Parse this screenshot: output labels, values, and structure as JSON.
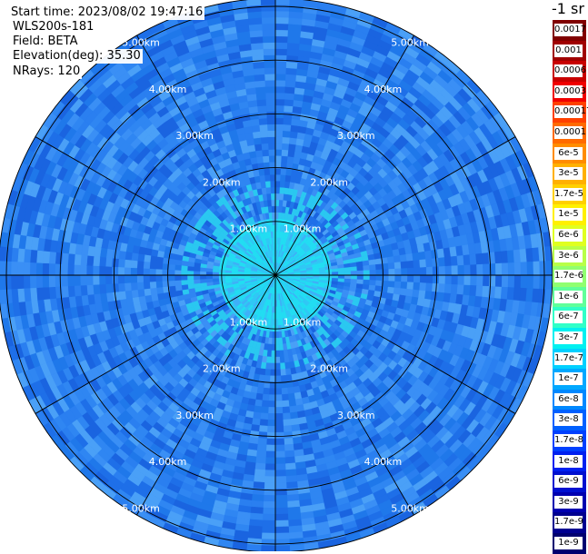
{
  "info": {
    "start_time": "Start time: 2023/08/02 19:47:16",
    "instrument": "WLS200s-181",
    "field": "Field: BETA",
    "elevation": "Elevation(deg): 35.30",
    "nrays": "NRays: 120"
  },
  "colorbar": {
    "unit_label": "-1 sr",
    "labels": [
      "0.0017",
      "0.001",
      "0.0006",
      "0.0003",
      "0.00017",
      "0.0001",
      "6e-5",
      "3e-5",
      "1.7e-5",
      "1e-5",
      "6e-6",
      "3e-6",
      "1.7e-6",
      "1e-6",
      "6e-7",
      "3e-7",
      "1.7e-7",
      "1e-7",
      "6e-8",
      "3e-8",
      "1.7e-8",
      "1e-8",
      "6e-9",
      "3e-9",
      "1.7e-9",
      "1e-9"
    ],
    "colors": [
      "#800000",
      "#a00000",
      "#c80000",
      "#f00000",
      "#ff4000",
      "#ff6a00",
      "#ff8c00",
      "#ffb000",
      "#ffd000",
      "#fff000",
      "#e0ff20",
      "#b8ff48",
      "#90ff70",
      "#60ff9a",
      "#30ffc8",
      "#00f0f0",
      "#00d0ff",
      "#00a8ff",
      "#0088ff",
      "#0060ff",
      "#0040ff",
      "#0020f0",
      "#0010d0",
      "#0000b0",
      "#000090",
      "#000070"
    ]
  },
  "chart_data": {
    "type": "ppi",
    "range_rings_km": [
      1,
      2,
      3,
      4,
      5
    ],
    "ring_labels": [
      "1.00km",
      "2.00km",
      "3.00km",
      "4.00km",
      "5.00km"
    ],
    "max_range_km": 5.15,
    "n_rays": 120,
    "spoke_angles_deg": [
      0,
      30,
      60,
      90,
      120,
      150,
      180,
      210,
      240,
      270,
      300,
      330
    ],
    "label_angles_deg": [
      30,
      150,
      210,
      330
    ],
    "field": "BETA",
    "background_color": "#2a7ff0"
  }
}
